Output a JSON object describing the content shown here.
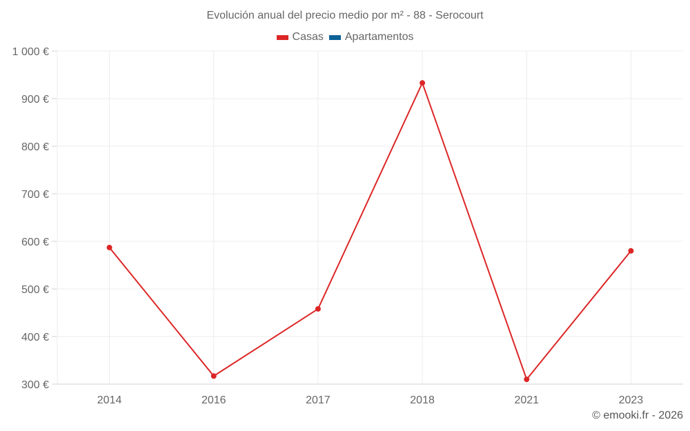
{
  "chart": {
    "title": "Evolución anual del precio medio por m² - 88 - Serocourt",
    "legend": [
      {
        "label": "Casas",
        "color": "#dc2626"
      },
      {
        "label": "Apartamentos",
        "color": "#0b6198"
      }
    ],
    "credit": "© emooki.fr - 2026",
    "y_ticks": [
      "1 000 €",
      "900 €",
      "800 €",
      "700 €",
      "600 €",
      "500 €",
      "400 €",
      "300 €"
    ],
    "x_ticks": [
      "2014",
      "2016",
      "2017",
      "2018",
      "2021",
      "2023"
    ]
  },
  "chart_data": {
    "type": "line",
    "title": "Evolución anual del precio medio por m² - 88 - Serocourt",
    "xlabel": "",
    "ylabel": "",
    "categories": [
      "2014",
      "2016",
      "2017",
      "2018",
      "2021",
      "2023"
    ],
    "series": [
      {
        "name": "Casas",
        "color": "#dc2626",
        "values": [
          587,
          317,
          458,
          933,
          310,
          580
        ]
      },
      {
        "name": "Apartamentos",
        "color": "#0b6198",
        "values": []
      }
    ],
    "ylim": [
      300,
      1000
    ],
    "y_tick_step": 100,
    "grid": true,
    "legend_position": "top"
  }
}
